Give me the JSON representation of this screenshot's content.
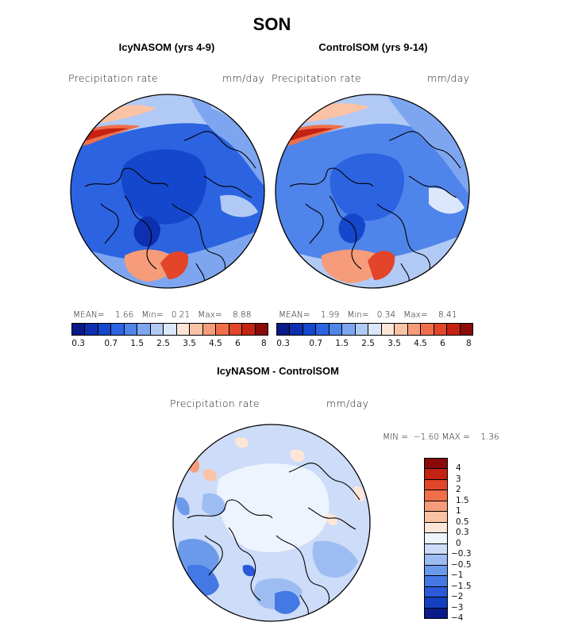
{
  "title": "SON",
  "panels": [
    {
      "subtitle": "IcyNASOM (yrs 4-9)",
      "variable": "Precipitation rate",
      "units": "mm/day",
      "stats": {
        "mean_label": "MEAN=",
        "mean": "1.66",
        "min_label": "Min=",
        "min": "0.21",
        "max_label": "Max=",
        "max": "8.88"
      }
    },
    {
      "subtitle": "ControlSOM (yrs 9-14)",
      "variable": "Precipitation rate",
      "units": "mm/day",
      "stats": {
        "mean_label": "MEAN=",
        "mean": "1.99",
        "min_label": "Min=",
        "min": "0.34",
        "max_label": "Max=",
        "max": "8.41"
      }
    }
  ],
  "diff_panel": {
    "subtitle": "IcyNASOM - ControlSOM",
    "variable": "Precipitation rate",
    "units": "mm/day",
    "stats": {
      "min_label": "MIN =",
      "min": "−1.60",
      "max_label": "MAX =",
      "max": "1.36"
    }
  },
  "colorbar_abs": {
    "colors": [
      "#0a1a8a",
      "#0d2fb0",
      "#1447cc",
      "#2c63e0",
      "#4f84ea",
      "#7ea6f0",
      "#b1c9f5",
      "#dce7fb",
      "#fde6d8",
      "#fbc3a6",
      "#f69c7a",
      "#ef6f4a",
      "#e2452a",
      "#c42212",
      "#8a0a0a"
    ],
    "tick_labels": [
      "0.3",
      "0.7",
      "1.5",
      "2.5",
      "3.5",
      "4.5",
      "6",
      "8"
    ]
  },
  "colorbar_diff": {
    "colors_top_to_bottom": [
      "#8a0a0a",
      "#c42212",
      "#e2452a",
      "#ef6f4a",
      "#f69c7a",
      "#fbc3a6",
      "#fde6d8",
      "#eef4fd",
      "#cddcf8",
      "#9dbdf2",
      "#6c9aeb",
      "#4478e4",
      "#2a5ad8",
      "#1440c0",
      "#0a1a8a"
    ],
    "tick_labels": [
      "4",
      "3",
      "2",
      "1.5",
      "1",
      "0.5",
      "0.3",
      "0",
      "−0.3",
      "−0.5",
      "−1",
      "−1.5",
      "−2",
      "−3",
      "−4"
    ]
  }
}
